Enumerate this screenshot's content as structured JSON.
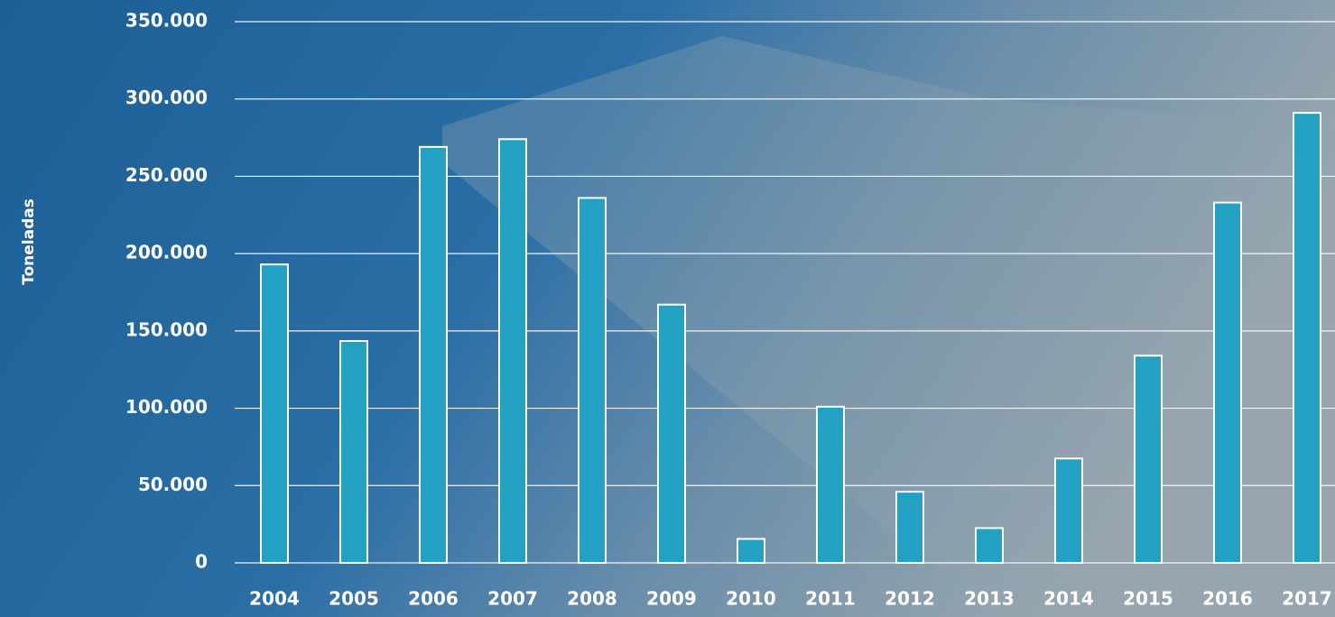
{
  "chart_data": {
    "type": "bar",
    "y_label": "Toneladas",
    "categories": [
      "2004",
      "2005",
      "2006",
      "2007",
      "2008",
      "2009",
      "2010",
      "2011",
      "2012",
      "2013",
      "2014",
      "2015",
      "2016",
      "2017"
    ],
    "values": [
      193000,
      143500,
      269000,
      274000,
      236000,
      167000,
      15500,
      101000,
      46000,
      22500,
      67500,
      134000,
      233000,
      291000
    ],
    "color": "#22a1c2",
    "ylim": [
      0,
      350000
    ],
    "yticks": [
      0,
      {
        "value": 50000,
        "label": "50.000"
      },
      {
        "value": 100000,
        "label": "100.000"
      },
      {
        "value": 150000,
        "label": "150.000"
      },
      {
        "value": 200000,
        "label": "200.000"
      },
      {
        "value": 250000,
        "label": "250.000"
      },
      {
        "value": 300000,
        "label": "300.000"
      },
      {
        "value": 350000,
        "label": "350.000"
      }
    ],
    "grid": true
  }
}
